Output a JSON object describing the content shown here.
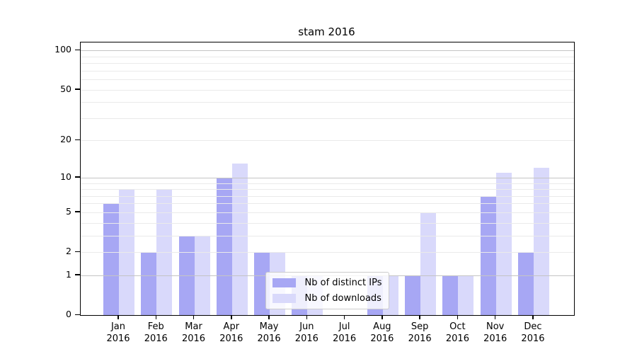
{
  "title": "stam 2016",
  "chart_data": {
    "type": "bar",
    "title": "stam 2016",
    "categories": [
      "Jan",
      "Feb",
      "Mar",
      "Apr",
      "May",
      "Jun",
      "Jul",
      "Aug",
      "Sep",
      "Oct",
      "Nov",
      "Dec"
    ],
    "year_label": "2016",
    "series": [
      {
        "name": "Nb of distinct IPs",
        "color": "#a7a7f4",
        "values": [
          6,
          2,
          3,
          10,
          2,
          1,
          0,
          1,
          1,
          1,
          7,
          2
        ]
      },
      {
        "name": "Nb of downloads",
        "color": "#d9d9fb",
        "values": [
          8,
          8,
          3,
          13,
          2,
          1,
          0,
          1,
          5,
          1,
          11,
          12
        ]
      }
    ],
    "y_axis": {
      "scale": "log1p",
      "labeled_ticks": [
        0,
        1,
        2,
        5,
        10,
        20,
        50,
        100
      ],
      "grid_major": [
        1,
        10,
        100
      ],
      "grid_minor": [
        2,
        3,
        4,
        5,
        6,
        7,
        8,
        9,
        20,
        30,
        40,
        50,
        60,
        70,
        80,
        90
      ],
      "ylim": [
        0,
        115
      ]
    },
    "legend": {
      "position": "lower center"
    },
    "grid": true
  },
  "colors": {
    "distinct_ips": "#a7a7f4",
    "downloads": "#d9d9fb",
    "grid_major": "#c4c4c4",
    "grid_minor": "#eaeaea",
    "spine": "#000000",
    "legend_border": "#cccccc"
  }
}
